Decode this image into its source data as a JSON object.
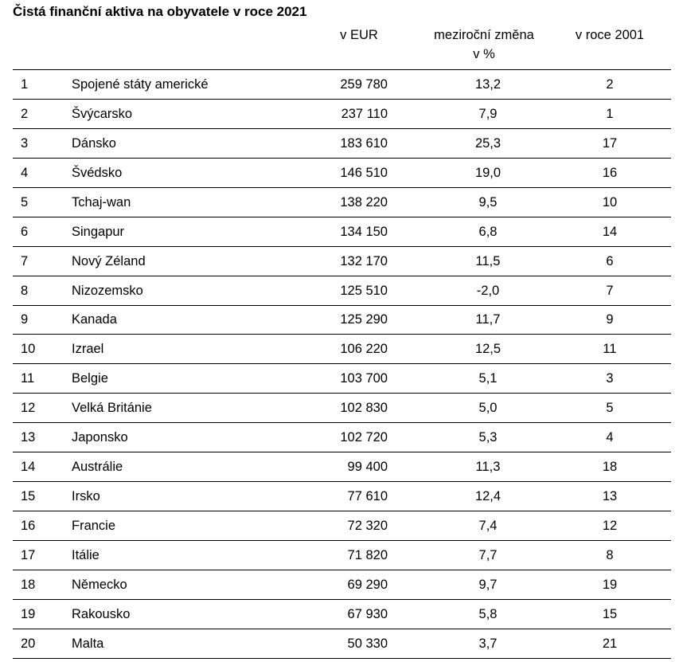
{
  "title": "Čistá finanční aktiva na obyvatele v roce 2021",
  "columns": {
    "eur": "v EUR",
    "change_line1": "meziroční změna",
    "change_line2": "v %",
    "y2001": "v roce 2001"
  },
  "rows": [
    {
      "rank": "1",
      "country": "Spojené státy americké",
      "eur": "259 780",
      "change": "13,2",
      "y2001": "2"
    },
    {
      "rank": "2",
      "country": "Švýcarsko",
      "eur": "237 110",
      "change": "7,9",
      "y2001": "1"
    },
    {
      "rank": "3",
      "country": "Dánsko",
      "eur": "183 610",
      "change": "25,3",
      "y2001": "17"
    },
    {
      "rank": "4",
      "country": "Švédsko",
      "eur": "146 510",
      "change": "19,0",
      "y2001": "16"
    },
    {
      "rank": "5",
      "country": "Tchaj-wan",
      "eur": "138 220",
      "change": "9,5",
      "y2001": "10"
    },
    {
      "rank": "6",
      "country": "Singapur",
      "eur": "134 150",
      "change": "6,8",
      "y2001": "14"
    },
    {
      "rank": "7",
      "country": "Nový Zéland",
      "eur": "132 170",
      "change": "11,5",
      "y2001": "6"
    },
    {
      "rank": "8",
      "country": "Nizozemsko",
      "eur": "125 510",
      "change": "-2,0",
      "y2001": "7"
    },
    {
      "rank": "9",
      "country": "Kanada",
      "eur": "125 290",
      "change": "11,7",
      "y2001": "9"
    },
    {
      "rank": "10",
      "country": "Izrael",
      "eur": "106 220",
      "change": "12,5",
      "y2001": "11"
    },
    {
      "rank": "11",
      "country": "Belgie",
      "eur": "103 700",
      "change": "5,1",
      "y2001": "3"
    },
    {
      "rank": "12",
      "country": "Velká Británie",
      "eur": "102 830",
      "change": "5,0",
      "y2001": "5"
    },
    {
      "rank": "13",
      "country": "Japonsko",
      "eur": "102 720",
      "change": "5,3",
      "y2001": "4"
    },
    {
      "rank": "14",
      "country": "Austrálie",
      "eur": "99 400",
      "change": "11,3",
      "y2001": "18"
    },
    {
      "rank": "15",
      "country": "Irsko",
      "eur": "77 610",
      "change": "12,4",
      "y2001": "13"
    },
    {
      "rank": "16",
      "country": "Francie",
      "eur": "72 320",
      "change": "7,4",
      "y2001": "12"
    },
    {
      "rank": "17",
      "country": "Itálie",
      "eur": "71 820",
      "change": "7,7",
      "y2001": "8"
    },
    {
      "rank": "18",
      "country": "Německo",
      "eur": "69 290",
      "change": "9,7",
      "y2001": "19"
    },
    {
      "rank": "19",
      "country": "Rakousko",
      "eur": "67 930",
      "change": "5,8",
      "y2001": "15"
    },
    {
      "rank": "20",
      "country": "Malta",
      "eur": "50 330",
      "change": "3,7",
      "y2001": "21"
    }
  ]
}
